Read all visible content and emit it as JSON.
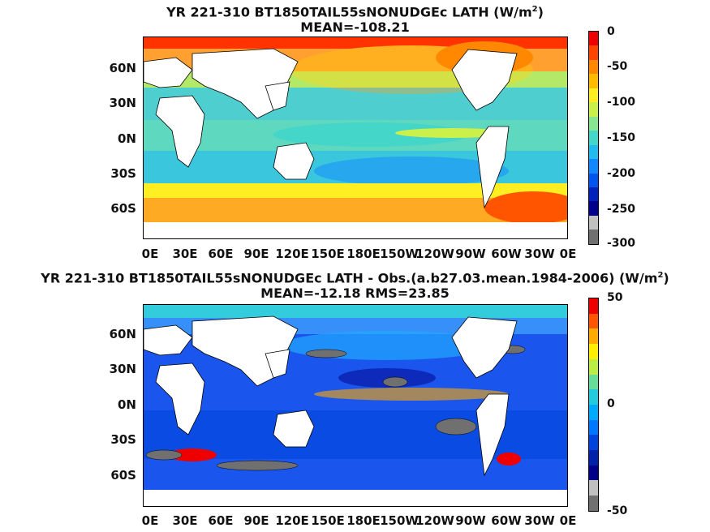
{
  "panels": [
    {
      "title_line1": "YR 221-310 BT1850TAIL55sNONUDGEc  LATH (W/m",
      "title_sup": "2",
      "title_tail": ")",
      "title_line2": "MEAN=-108.21",
      "lat_labels": [
        "60N",
        "30N",
        "0N",
        "30S",
        "60S"
      ],
      "lon_labels": [
        "0E",
        "30E",
        "60E",
        "90E",
        "120E",
        "150E",
        "180E",
        "150W",
        "120W",
        "90W",
        "60W",
        "30W",
        "0E"
      ],
      "colorbar_labels": [
        "0",
        "-50",
        "-100",
        "-150",
        "-200",
        "-250",
        "-300"
      ],
      "colorbar_colors": [
        "#ee0000",
        "#ff4400",
        "#ff8800",
        "#ffbb00",
        "#ffee22",
        "#ccf04a",
        "#88e690",
        "#44d6c8",
        "#22bbee",
        "#1188ff",
        "#0055ee",
        "#0022bb",
        "#00008c",
        "#c0c0c0",
        "#707070"
      ]
    },
    {
      "title_line1": "YR 221-310 BT1850TAIL55sNONUDGEc LATH - Obs.(a.b27.03.mean.1984-2006) (W/m",
      "title_sup": "2",
      "title_tail": ")",
      "title_line2": "MEAN=-12.18 RMS=23.85",
      "lat_labels": [
        "60N",
        "30N",
        "0N",
        "30S",
        "60S"
      ],
      "lon_labels": [
        "0E",
        "30E",
        "60E",
        "90E",
        "120E",
        "150E",
        "180E",
        "150W",
        "120W",
        "90W",
        "60W",
        "30W",
        "0E"
      ],
      "colorbar_labels": [
        "50",
        "0",
        "-50"
      ],
      "colorbar_colors": [
        "#ee0000",
        "#ff5500",
        "#ffaa00",
        "#ffee00",
        "#bbee44",
        "#66dd99",
        "#22ccdd",
        "#00aaff",
        "#0077ff",
        "#0044dd",
        "#0022aa",
        "#000088",
        "#c0c0c0",
        "#707070"
      ]
    }
  ],
  "colors": {
    "land": "#ffffff",
    "top_ocean": "#5fd8c0",
    "bottom_ocean": "#1a55ee",
    "undefined_gray": "#707070"
  }
}
